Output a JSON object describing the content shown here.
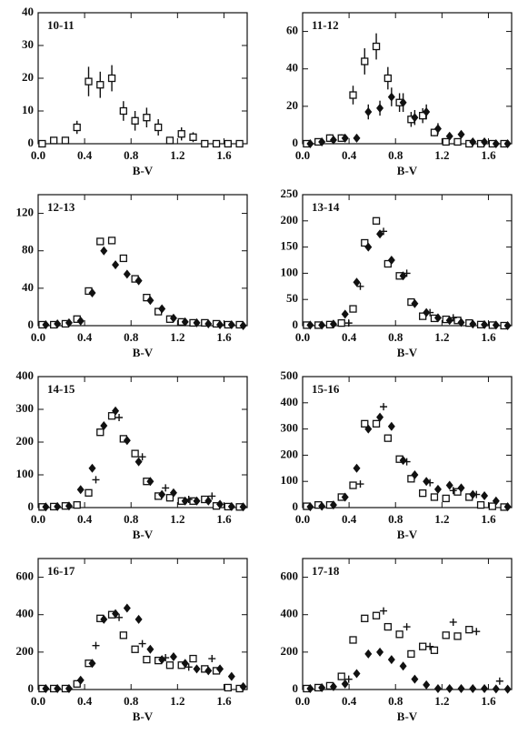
{
  "chart_data": [
    {
      "type": "scatter",
      "title": "10-11",
      "x_label": "B-V",
      "x": [
        0.05,
        0.15,
        0.25,
        0.35,
        0.45,
        0.55,
        0.65,
        0.75,
        0.85,
        0.95,
        1.05,
        1.15,
        1.25,
        1.35,
        1.45,
        1.55,
        1.65,
        1.75
      ],
      "xlim": [
        0,
        1.8
      ],
      "xticks": [
        {
          "value": 0,
          "label": "0.0"
        },
        0.4,
        0.8,
        1.2,
        1.6
      ],
      "ylim": [
        0,
        40
      ],
      "yticks": [
        0,
        10,
        20,
        30,
        40
      ],
      "series": [
        {
          "marker": "square",
          "color": "#111",
          "values": [
            0,
            1,
            1,
            5,
            19,
            18,
            20,
            10,
            7,
            8,
            5,
            1,
            3,
            2,
            0,
            0,
            0,
            0
          ],
          "errors": [
            0,
            1,
            1,
            2,
            4.5,
            4,
            4,
            3,
            3,
            3,
            2.5,
            1,
            2,
            1.5,
            0,
            0,
            0,
            0
          ]
        }
      ]
    },
    {
      "type": "scatter",
      "title": "11-12",
      "x_label": "B-V",
      "x": [
        0.05,
        0.15,
        0.25,
        0.35,
        0.45,
        0.55,
        0.65,
        0.75,
        0.85,
        0.95,
        1.05,
        1.15,
        1.25,
        1.35,
        1.45,
        1.55,
        1.65,
        1.75
      ],
      "xlim": [
        0,
        1.8
      ],
      "xticks": [
        {
          "value": 0,
          "label": "0.0"
        },
        0.4,
        0.8,
        1.2,
        1.6
      ],
      "ylim": [
        0,
        70
      ],
      "yticks": [
        0,
        20,
        40,
        60
      ],
      "series": [
        {
          "marker": "square",
          "color": "#111",
          "values": [
            0,
            1,
            3,
            3,
            26,
            44,
            52,
            35,
            22,
            13,
            15,
            6,
            1,
            1,
            0,
            0,
            0,
            0
          ],
          "errors": [
            0,
            1,
            2,
            2,
            5,
            7,
            7,
            6,
            5,
            4,
            4,
            2,
            1,
            1,
            0,
            0,
            0,
            0
          ]
        },
        {
          "marker": "diamond",
          "color": "#111",
          "values": [
            0,
            1,
            2,
            3,
            3,
            17,
            19,
            25,
            22,
            14,
            17,
            8,
            4,
            5,
            1,
            1,
            0,
            0
          ],
          "errors": [
            0,
            1,
            1,
            1,
            2,
            4,
            4,
            5,
            5,
            4,
            4,
            3,
            2,
            2,
            1,
            1,
            0,
            0
          ]
        }
      ]
    },
    {
      "type": "scatter",
      "title": "12-13",
      "x_label": "B-V",
      "x": [
        0.05,
        0.15,
        0.25,
        0.35,
        0.45,
        0.55,
        0.65,
        0.75,
        0.85,
        0.95,
        1.05,
        1.15,
        1.25,
        1.35,
        1.45,
        1.55,
        1.65,
        1.75
      ],
      "xlim": [
        0,
        1.8
      ],
      "xticks": [
        {
          "value": 0,
          "label": "0.0"
        },
        0.4,
        0.8,
        1.2,
        1.6
      ],
      "ylim": [
        0,
        140
      ],
      "yticks": [
        0,
        40,
        80,
        120
      ],
      "series": [
        {
          "marker": "square",
          "color": "#111",
          "values": [
            1,
            1,
            2,
            7,
            37,
            90,
            91,
            72,
            50,
            30,
            15,
            7,
            4,
            3,
            3,
            2,
            1,
            1
          ]
        },
        {
          "marker": "diamond",
          "color": "#111",
          "values": [
            1,
            2,
            3,
            5,
            35,
            80,
            65,
            55,
            48,
            27,
            18,
            8,
            4,
            3,
            2,
            1,
            1,
            0
          ]
        }
      ]
    },
    {
      "type": "scatter",
      "title": "13-14",
      "x_label": "B-V",
      "x": [
        0.05,
        0.15,
        0.25,
        0.35,
        0.45,
        0.55,
        0.65,
        0.75,
        0.85,
        0.95,
        1.05,
        1.15,
        1.25,
        1.35,
        1.45,
        1.55,
        1.65,
        1.75
      ],
      "xlim": [
        0,
        1.8
      ],
      "xticks": [
        {
          "value": 0,
          "label": "0.0"
        },
        0.4,
        0.8,
        1.2,
        1.6
      ],
      "ylim": [
        0,
        250
      ],
      "yticks": [
        0,
        50,
        100,
        150,
        200,
        250
      ],
      "series": [
        {
          "marker": "square",
          "color": "#111",
          "values": [
            1,
            1,
            2,
            5,
            32,
            158,
            200,
            118,
            95,
            45,
            18,
            14,
            12,
            10,
            5,
            2,
            1,
            0
          ]
        },
        {
          "marker": "diamond",
          "color": "#111",
          "values": [
            1,
            1,
            3,
            22,
            83,
            150,
            175,
            125,
            95,
            42,
            25,
            15,
            10,
            6,
            3,
            2,
            1,
            0
          ]
        },
        {
          "marker": "plus",
          "color": "#111",
          "values": [
            null,
            null,
            null,
            5,
            75,
            null,
            180,
            null,
            100,
            null,
            25,
            null,
            15,
            null,
            null,
            null,
            null,
            null
          ]
        }
      ]
    },
    {
      "type": "scatter",
      "title": "14-15",
      "x_label": "B-V",
      "x": [
        0.05,
        0.15,
        0.25,
        0.35,
        0.45,
        0.55,
        0.65,
        0.75,
        0.85,
        0.95,
        1.05,
        1.15,
        1.25,
        1.35,
        1.45,
        1.55,
        1.65,
        1.75
      ],
      "xlim": [
        0,
        1.8
      ],
      "xticks": [
        {
          "value": 0,
          "label": "0.0"
        },
        0.4,
        0.8,
        1.2,
        1.6
      ],
      "ylim": [
        0,
        400
      ],
      "yticks": [
        0,
        100,
        200,
        300,
        400
      ],
      "series": [
        {
          "marker": "square",
          "color": "#111",
          "values": [
            2,
            3,
            5,
            8,
            45,
            230,
            280,
            210,
            165,
            80,
            35,
            30,
            20,
            20,
            25,
            5,
            3,
            2
          ]
        },
        {
          "marker": "diamond",
          "color": "#111",
          "values": [
            2,
            3,
            5,
            55,
            120,
            250,
            295,
            205,
            140,
            80,
            40,
            45,
            20,
            20,
            20,
            10,
            3,
            2
          ]
        },
        {
          "marker": "plus",
          "color": "#111",
          "values": [
            null,
            null,
            null,
            null,
            85,
            null,
            275,
            null,
            155,
            null,
            60,
            null,
            25,
            null,
            35,
            null,
            null,
            null
          ]
        }
      ]
    },
    {
      "type": "scatter",
      "title": "15-16",
      "x_label": "B-V",
      "x": [
        0.05,
        0.15,
        0.25,
        0.35,
        0.45,
        0.55,
        0.65,
        0.75,
        0.85,
        0.95,
        1.05,
        1.15,
        1.25,
        1.35,
        1.45,
        1.55,
        1.65,
        1.75
      ],
      "xlim": [
        0,
        1.8
      ],
      "xticks": [
        {
          "value": 0,
          "label": "0.0"
        },
        0.4,
        0.8,
        1.2,
        1.6
      ],
      "ylim": [
        0,
        500
      ],
      "yticks": [
        0,
        100,
        200,
        300,
        400,
        500
      ],
      "series": [
        {
          "marker": "square",
          "color": "#111",
          "values": [
            5,
            10,
            10,
            40,
            85,
            320,
            320,
            265,
            185,
            110,
            55,
            40,
            35,
            60,
            40,
            10,
            5,
            2
          ]
        },
        {
          "marker": "diamond",
          "color": "#111",
          "values": [
            3,
            5,
            10,
            40,
            150,
            300,
            345,
            310,
            180,
            125,
            100,
            70,
            85,
            75,
            50,
            45,
            25,
            3
          ]
        },
        {
          "marker": "plus",
          "color": "#111",
          "values": [
            null,
            null,
            null,
            null,
            90,
            null,
            385,
            null,
            175,
            null,
            95,
            null,
            65,
            null,
            50,
            null,
            null,
            null
          ]
        }
      ]
    },
    {
      "type": "scatter",
      "title": "16-17",
      "x_label": "B-V",
      "x": [
        0.05,
        0.15,
        0.25,
        0.35,
        0.45,
        0.55,
        0.65,
        0.75,
        0.85,
        0.95,
        1.05,
        1.15,
        1.25,
        1.35,
        1.45,
        1.55,
        1.65,
        1.75
      ],
      "xlim": [
        0,
        1.8
      ],
      "xticks": [
        {
          "value": 0,
          "label": "0.0"
        },
        0.4,
        0.8,
        1.2,
        1.6
      ],
      "ylim": [
        0,
        700
      ],
      "yticks": [
        0,
        200,
        400,
        600
      ],
      "series": [
        {
          "marker": "square",
          "color": "#111",
          "values": [
            5,
            5,
            5,
            30,
            140,
            380,
            400,
            290,
            215,
            160,
            155,
            130,
            130,
            165,
            110,
            100,
            10,
            5
          ]
        },
        {
          "marker": "diamond",
          "color": "#111",
          "values": [
            5,
            5,
            5,
            50,
            140,
            375,
            405,
            435,
            375,
            215,
            160,
            175,
            140,
            110,
            100,
            110,
            70,
            15
          ]
        },
        {
          "marker": "plus",
          "color": "#111",
          "values": [
            null,
            null,
            null,
            null,
            235,
            null,
            385,
            null,
            245,
            null,
            170,
            null,
            120,
            null,
            165,
            null,
            null,
            null
          ]
        }
      ]
    },
    {
      "type": "scatter",
      "title": "17-18",
      "x_label": "B-V",
      "x": [
        0.05,
        0.15,
        0.25,
        0.35,
        0.45,
        0.55,
        0.65,
        0.75,
        0.85,
        0.95,
        1.05,
        1.15,
        1.25,
        1.35,
        1.45,
        1.55,
        1.65,
        1.75
      ],
      "xlim": [
        0,
        1.8
      ],
      "xticks": [
        {
          "value": 0,
          "label": "0.0"
        },
        0.4,
        0.8,
        1.2,
        1.6
      ],
      "ylim": [
        0,
        700
      ],
      "yticks": [
        0,
        200,
        400,
        600
      ],
      "series": [
        {
          "marker": "square",
          "color": "#111",
          "values": [
            5,
            10,
            20,
            70,
            265,
            380,
            395,
            335,
            295,
            190,
            230,
            210,
            290,
            285,
            320,
            null,
            null,
            null
          ]
        },
        {
          "marker": "diamond",
          "color": "#111",
          "values": [
            5,
            10,
            15,
            30,
            85,
            190,
            200,
            160,
            125,
            55,
            25,
            5,
            5,
            5,
            5,
            5,
            3,
            2
          ]
        },
        {
          "marker": "plus",
          "color": "#111",
          "values": [
            null,
            null,
            null,
            55,
            null,
            null,
            420,
            null,
            335,
            null,
            230,
            null,
            360,
            null,
            310,
            null,
            45,
            null
          ]
        }
      ]
    }
  ]
}
